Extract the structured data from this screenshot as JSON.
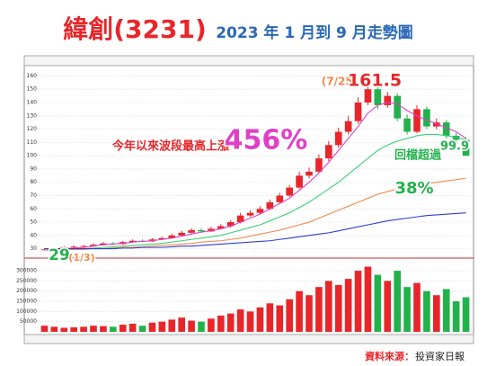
{
  "header": {
    "title": "緯創(3231)",
    "subtitle": "2023 年 1 月到 9 月走勢圖"
  },
  "annotations": [
    "(7/25)",
    "161.5",
    "今年以來波段最高上漲",
    "456%",
    "回檔超過",
    "38%",
    "99.9",
    "29",
    "(1/3)"
  ],
  "source": {
    "label": "資料來源：",
    "text": "投資家日報"
  },
  "chart_data": [
    {
      "type": "candlestick",
      "up_color": "#e8262a",
      "down_color": "#22b24c",
      "grid": true,
      "ylim": [
        25,
        163
      ],
      "yticks": [
        30,
        40,
        50,
        60,
        70,
        80,
        90,
        100,
        110,
        120,
        130,
        140,
        150,
        160
      ],
      "open": [
        29,
        29.5,
        30,
        31,
        31.5,
        32,
        33,
        34,
        33.5,
        35,
        36,
        35.5,
        37,
        38,
        40,
        42,
        44,
        43,
        45,
        47,
        50,
        55,
        57,
        60,
        65,
        70,
        76,
        85,
        88,
        98,
        108,
        118,
        126,
        140,
        150,
        138,
        145,
        128,
        118,
        135,
        122,
        125,
        115,
        112
      ],
      "high": [
        30.5,
        31,
        32,
        32.5,
        33,
        34,
        35,
        35,
        36,
        37,
        37,
        38,
        39,
        41.5,
        43.5,
        45.5,
        45.5,
        46.5,
        48.5,
        51.5,
        57,
        59,
        62,
        67,
        72,
        78,
        88,
        91,
        101,
        111,
        121,
        130,
        144,
        161.5,
        153,
        148,
        147,
        131,
        138,
        137,
        128,
        127,
        117,
        114
      ],
      "low": [
        29,
        28.8,
        29.5,
        30.5,
        31,
        31.5,
        32.5,
        33,
        33,
        34.5,
        35,
        35,
        36.5,
        37.5,
        39.5,
        41.5,
        42,
        42.5,
        44.5,
        46,
        49,
        54,
        56,
        59,
        64,
        69,
        75,
        83,
        87,
        96,
        106,
        116,
        124,
        138,
        135,
        136,
        126,
        116,
        117,
        120,
        120,
        113,
        110,
        99.9
      ],
      "close": [
        29.5,
        30,
        31,
        31.5,
        32,
        33,
        34,
        33.5,
        35,
        36,
        35.5,
        37,
        38,
        40,
        42,
        44,
        43,
        45,
        47,
        50,
        55,
        57,
        60,
        65,
        70,
        76,
        85,
        88,
        98,
        108,
        118,
        126,
        140,
        150,
        138,
        145,
        128,
        118,
        135,
        122,
        125,
        115,
        112,
        100
      ],
      "lines": [
        {
          "color": "#e040c8",
          "values": [
            29,
            29.5,
            30,
            30.5,
            31,
            32,
            33,
            33.5,
            34,
            35,
            35.5,
            36,
            37,
            38,
            39.5,
            41,
            42.5,
            43.5,
            45,
            47,
            50,
            53,
            56,
            60,
            64,
            68,
            74,
            80,
            87,
            95,
            104,
            113,
            122,
            132,
            138,
            140,
            139,
            134,
            130,
            127,
            124,
            121,
            118,
            113
          ]
        },
        {
          "color": "#3ccf7a",
          "values": [
            29,
            29,
            29.5,
            30,
            30,
            30.5,
            31,
            31.5,
            32,
            32.5,
            33,
            33.5,
            34,
            35,
            36,
            37,
            38,
            39,
            40,
            42,
            44,
            46,
            48,
            51,
            54,
            57,
            61,
            65,
            70,
            75,
            80,
            86,
            92,
            98,
            104,
            108,
            111,
            113,
            115,
            116,
            116,
            115,
            114,
            112
          ]
        },
        {
          "color": "#f08a4b",
          "values": [
            29,
            29,
            29,
            29.5,
            29.5,
            30,
            30,
            30.5,
            31,
            31,
            31.5,
            32,
            32.5,
            33,
            33.5,
            34,
            35,
            35.5,
            36,
            37,
            38,
            39.5,
            41,
            42.5,
            44,
            46,
            48,
            50,
            53,
            56,
            59,
            62,
            65,
            68,
            71,
            73,
            75,
            76,
            78,
            79,
            80,
            81,
            82,
            83
          ]
        },
        {
          "color": "#2a3fd0",
          "values": [
            30,
            30,
            30,
            30,
            30,
            30,
            30,
            30,
            30.5,
            30.5,
            31,
            31,
            31,
            31.5,
            32,
            32,
            32.5,
            33,
            33.5,
            34,
            34.5,
            35,
            35.5,
            36,
            37,
            38,
            39,
            40,
            41,
            42,
            43.5,
            45,
            46.5,
            48,
            49.5,
            51,
            52,
            53,
            54,
            55,
            55.5,
            56,
            56.5,
            57
          ]
        }
      ]
    },
    {
      "type": "bar",
      "grid": true,
      "ylim": [
        0,
        340000
      ],
      "yticks": [
        50000,
        100000,
        150000,
        200000,
        250000,
        300000
      ],
      "values": [
        30000,
        25000,
        20000,
        22000,
        25000,
        30000,
        28000,
        25000,
        35000,
        40000,
        30000,
        45000,
        50000,
        60000,
        70000,
        55000,
        50000,
        65000,
        80000,
        90000,
        110000,
        100000,
        120000,
        140000,
        130000,
        160000,
        200000,
        180000,
        220000,
        250000,
        230000,
        260000,
        300000,
        320000,
        280000,
        250000,
        300000,
        220000,
        240000,
        200000,
        180000,
        210000,
        150000,
        170000
      ]
    }
  ]
}
